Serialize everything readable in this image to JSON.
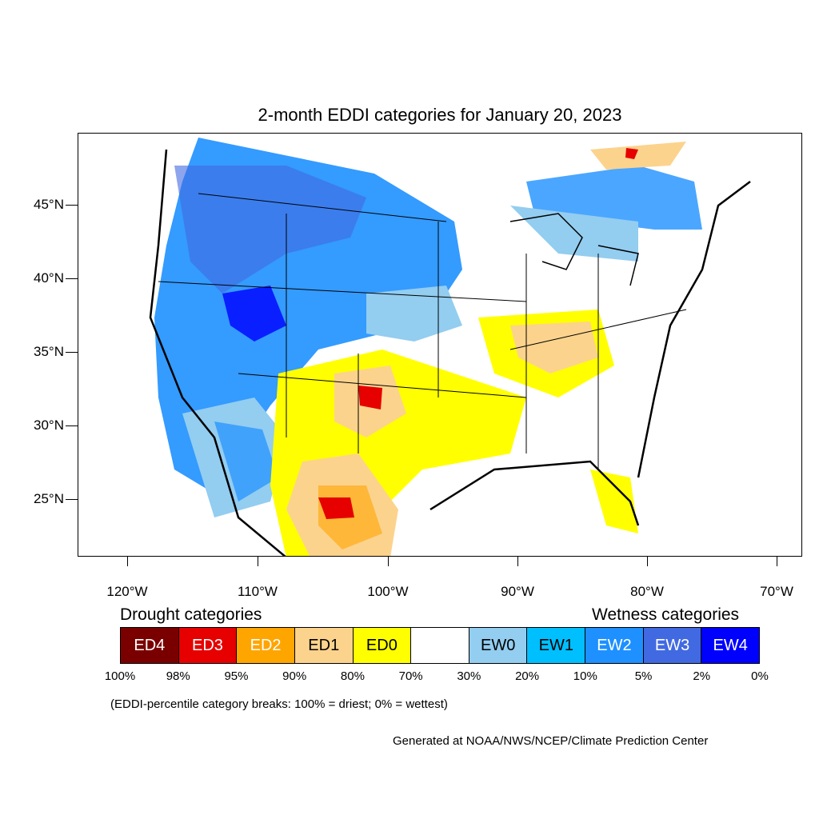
{
  "title": "2-month EDDI categories for January 20, 2023",
  "lat_labels": [
    "45°N",
    "40°N",
    "35°N",
    "30°N",
    "25°N"
  ],
  "lon_labels": [
    "120°W",
    "110°W",
    "100°W",
    "90°W",
    "80°W",
    "70°W"
  ],
  "legend": {
    "drought_heading": "Drought categories",
    "wetness_heading": "Wetness categories",
    "categories": [
      {
        "label": "ED4",
        "color": "#7a0000",
        "text_color": "#ffffff"
      },
      {
        "label": "ED3",
        "color": "#e60000",
        "text_color": "#ffffff"
      },
      {
        "label": "ED2",
        "color": "#ffa500",
        "text_color": "#ffffff"
      },
      {
        "label": "ED1",
        "color": "#fcd38d",
        "text_color": "#000000"
      },
      {
        "label": "ED0",
        "color": "#ffff00",
        "text_color": "#000000"
      },
      {
        "label": "",
        "color": "#ffffff",
        "text_color": "#000000"
      },
      {
        "label": "EW0",
        "color": "#93cdf0",
        "text_color": "#000000"
      },
      {
        "label": "EW1",
        "color": "#00bfff",
        "text_color": "#000000"
      },
      {
        "label": "EW2",
        "color": "#1e90ff",
        "text_color": "#ffffff"
      },
      {
        "label": "EW3",
        "color": "#4169e1",
        "text_color": "#ffffff"
      },
      {
        "label": "EW4",
        "color": "#0000ff",
        "text_color": "#ffffff"
      }
    ],
    "breaks": [
      "100%",
      "98%",
      "95%",
      "90%",
      "80%",
      "70%",
      "30%",
      "20%",
      "10%",
      "5%",
      "2%",
      "0%"
    ]
  },
  "note": "(EDDI-percentile category breaks: 100% = driest; 0% = wettest)",
  "credit": "Generated at NOAA/NWS/NCEP/Climate Prediction Center"
}
